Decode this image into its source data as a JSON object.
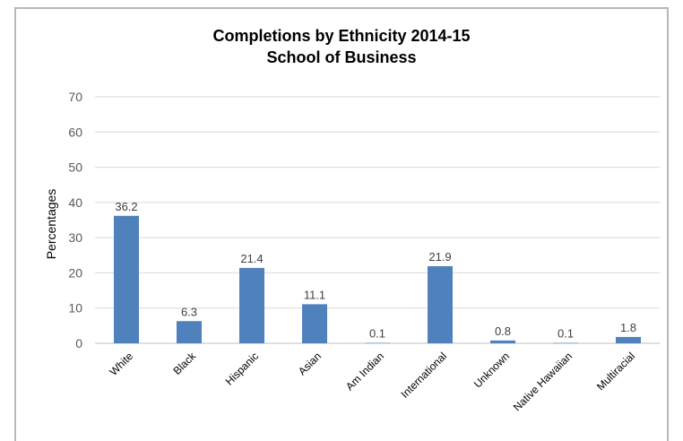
{
  "chart_data": {
    "type": "bar",
    "title": "Completions by Ethnicity 2014-15",
    "subtitle": "School of Business",
    "xlabel": "",
    "ylabel": "Percentages",
    "ylim": [
      0,
      70
    ],
    "yticks": [
      0,
      10,
      20,
      30,
      40,
      50,
      60,
      70
    ],
    "grid": true,
    "legend": "none",
    "bar_color": "#4f81bd",
    "categories": [
      "White",
      "Black",
      "Hispanic",
      "Asian",
      "Am Indian",
      "International",
      "Unknown",
      "Native Hawaiian",
      "Multiracial"
    ],
    "values": [
      36.2,
      6.3,
      21.4,
      11.1,
      0.1,
      21.9,
      0.8,
      0.1,
      1.8
    ],
    "data_labels": [
      "36.2",
      "6.3",
      "21.4",
      "11.1",
      "0.1",
      "21.9",
      "0.8",
      "0.1",
      "1.8"
    ]
  }
}
